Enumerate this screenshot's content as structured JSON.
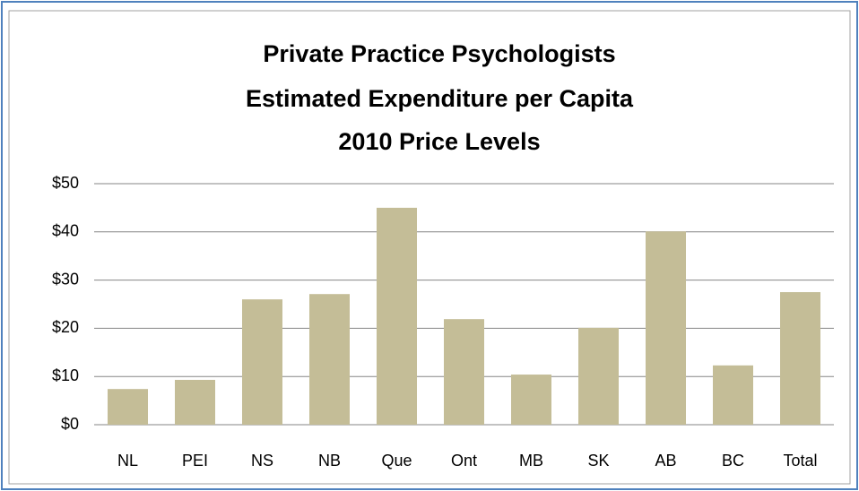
{
  "chart_data": {
    "type": "bar",
    "title": [
      "Private Practice Psychologists",
      "Estimated Expenditure per Capita",
      "2010 Price Levels"
    ],
    "categories": [
      "NL",
      "PEI",
      "NS",
      "NB",
      "Que",
      "Ont",
      "MB",
      "SK",
      "AB",
      "BC",
      "Total"
    ],
    "values": [
      7.4,
      9.3,
      26,
      27.1,
      45,
      21.9,
      10.4,
      20.1,
      40.1,
      12.3,
      27.5
    ],
    "color": "#c4bd97",
    "ylim": [
      0,
      50
    ],
    "yticks": [
      {
        "value": 0,
        "label": "$0"
      },
      {
        "value": 10,
        "label": "$10"
      },
      {
        "value": 20,
        "label": "$20"
      },
      {
        "value": 30,
        "label": "$30"
      },
      {
        "value": 40,
        "label": "$40"
      },
      {
        "value": 50,
        "label": "$50"
      }
    ],
    "grid": true
  }
}
